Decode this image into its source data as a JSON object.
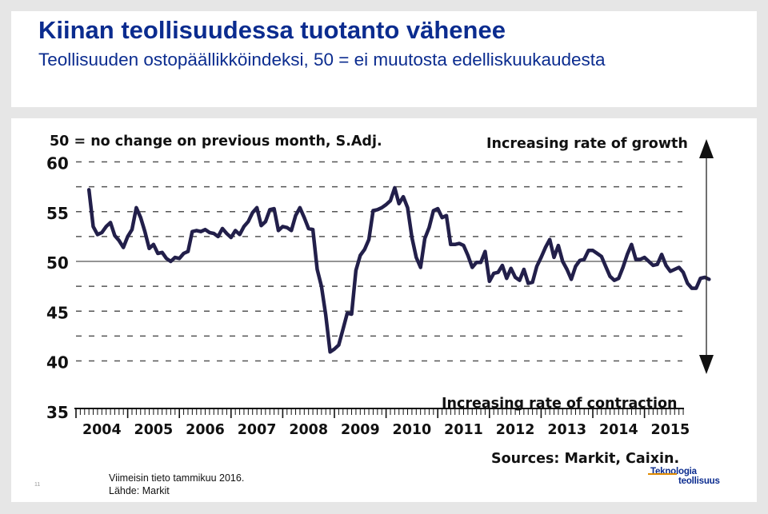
{
  "slide": {
    "title": "Kiinan teollisuudessa tuotanto vähenee",
    "subtitle": "Teollisuuden ostopäällikköindeksi, 50 = ei muutosta edelliskuukaudesta",
    "note_line1": "Viimeisin tieto tammikuu 2016.",
    "note_line2": "Lähde: Markit",
    "slide_number": "11",
    "logo_line1": "Teknologia",
    "logo_line2": "teollisuus"
  },
  "chart_data": {
    "type": "line",
    "header_left": "50 = no change on previous month, S.Adj.",
    "label_growth": "Increasing rate of growth",
    "label_contraction": "Increasing rate of contraction",
    "source": "Sources: Markit, Caixin.",
    "x_tick_labels": [
      "2004",
      "2005",
      "2006",
      "2007",
      "2008",
      "2009",
      "2010",
      "2011",
      "2012",
      "2013",
      "2014",
      "2015"
    ],
    "y_tick_labels": [
      "35",
      "40",
      "45",
      "50",
      "55",
      "60"
    ],
    "ylim": [
      35,
      62
    ],
    "grid": "dashed horizontal",
    "reference_line": 50,
    "series_color": "#221f4a",
    "series": [
      {
        "x_start": "2004-04",
        "frequency": "monthly",
        "values": [
          57.2,
          53.5,
          52.7,
          52.9,
          53.5,
          53.9,
          52.6,
          52.1,
          51.4,
          52.5,
          53.2,
          55.4,
          54.4,
          53.0,
          51.3,
          51.7,
          50.8,
          50.9,
          50.3,
          50.0,
          50.4,
          50.3,
          50.8,
          51.0,
          53.0,
          53.1,
          53.0,
          53.2,
          52.9,
          52.8,
          52.5,
          53.3,
          52.8,
          52.4,
          53.1,
          52.7,
          53.5,
          54.0,
          54.9,
          55.4,
          53.6,
          54.0,
          55.2,
          55.3,
          53.1,
          53.5,
          53.4,
          53.1,
          54.6,
          55.4,
          54.4,
          53.3,
          53.2,
          49.2,
          47.5,
          44.6,
          40.9,
          41.2,
          41.6,
          43.2,
          44.8,
          44.7,
          49.1,
          50.6,
          51.2,
          52.2,
          55.1,
          55.2,
          55.4,
          55.7,
          56.1,
          57.4,
          55.8,
          56.5,
          55.4,
          52.4,
          50.4,
          49.4,
          52.3,
          53.4,
          55.1,
          55.3,
          54.4,
          54.6,
          51.7,
          51.7,
          51.8,
          51.6,
          50.6,
          49.4,
          49.9,
          49.9,
          51.0,
          48.0,
          48.8,
          48.9,
          49.6,
          48.3,
          49.3,
          48.4,
          48.1,
          49.2,
          47.8,
          47.9,
          49.5,
          50.4,
          51.4,
          52.2,
          50.4,
          51.6,
          50.0,
          49.2,
          48.2,
          49.5,
          50.1,
          50.2,
          51.1,
          51.1,
          50.8,
          50.5,
          49.5,
          48.5,
          48.1,
          48.3,
          49.4,
          50.7,
          51.7,
          50.2,
          50.2,
          50.4,
          50.0,
          49.6,
          49.7,
          50.7,
          49.6,
          49.0,
          49.2,
          49.4,
          48.9,
          47.8,
          47.3,
          47.3,
          48.3,
          48.4,
          48.2
        ]
      }
    ]
  }
}
